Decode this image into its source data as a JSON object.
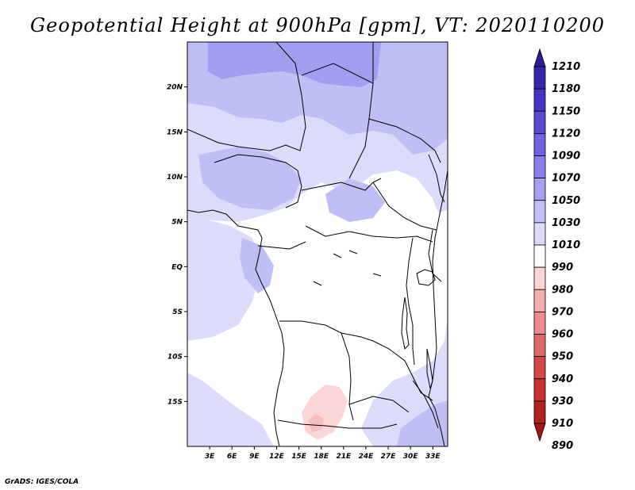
{
  "title": "Geopotential Height at 900hPa [gpm], VT: 2020110200",
  "footer": "GrADS: IGES/COLA",
  "map": {
    "lon_range": [
      0,
      35
    ],
    "lat_range": [
      -20,
      25
    ],
    "lon_ticks": [
      "3E",
      "6E",
      "9E",
      "12E",
      "15E",
      "18E",
      "21E",
      "24E",
      "27E",
      "30E",
      "33E"
    ],
    "lat_ticks": [
      "20N",
      "15N",
      "10N",
      "5N",
      "EQ",
      "5S",
      "10S",
      "15S"
    ],
    "fill_colors": {
      "1010_1030": "#dcdcfa",
      "1030_1050": "#bfbff5",
      "1050_1070": "#a0a0ef",
      "990_1010": "#ffffff",
      "980_990": "#fbd6d6"
    }
  },
  "colorbar": {
    "levels": [
      "1210",
      "1180",
      "1150",
      "1120",
      "1090",
      "1070",
      "1050",
      "1030",
      "1010",
      "990",
      "980",
      "970",
      "960",
      "950",
      "940",
      "930",
      "910",
      "890"
    ],
    "colors": [
      "#2c1d96",
      "#3525ad",
      "#4535c4",
      "#5a4bd6",
      "#7262e3",
      "#8d80ec",
      "#a99ff2",
      "#c3bdf6",
      "#dcd9fa",
      "#ffffff",
      "#fbd3d3",
      "#f4aeae",
      "#ec8b8b",
      "#e06a6a",
      "#d64848",
      "#c83232",
      "#b52222",
      "#a51616"
    ]
  }
}
